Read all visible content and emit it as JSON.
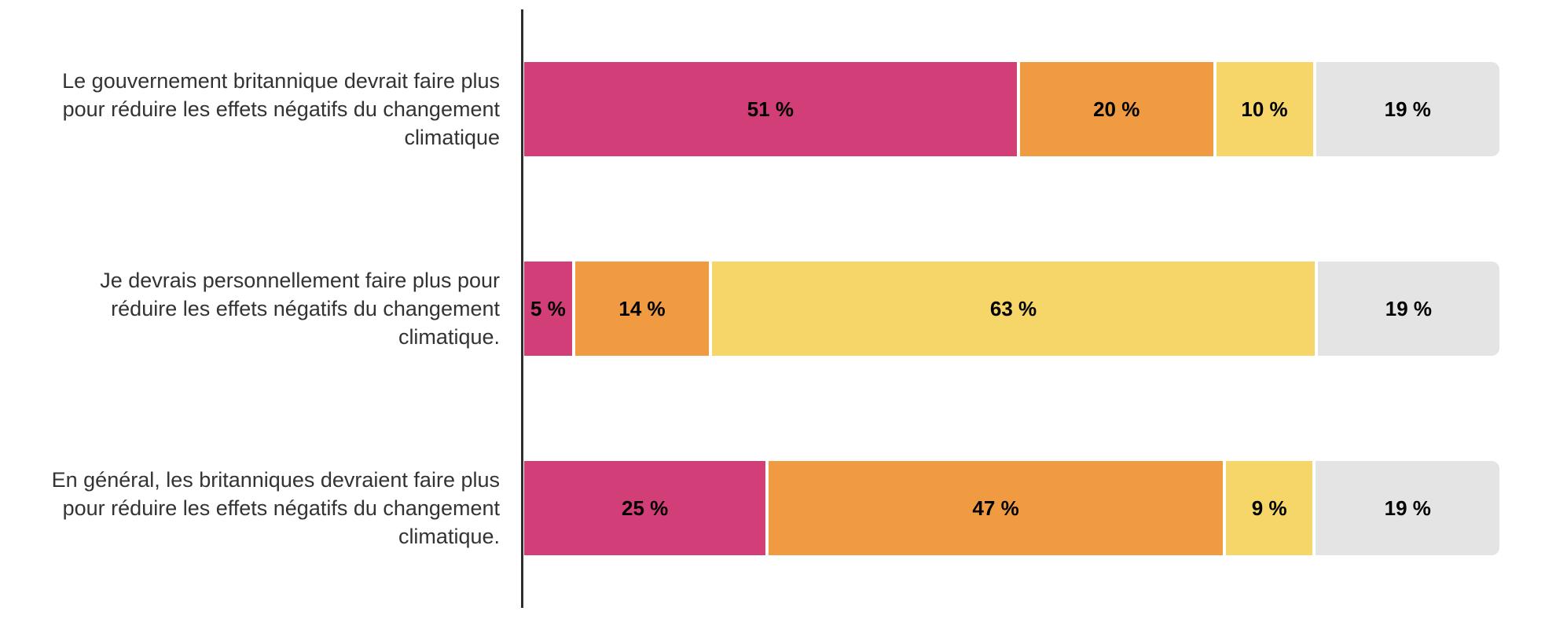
{
  "chart_data": {
    "type": "bar",
    "orientation": "horizontal",
    "stacked": true,
    "title": "",
    "xlabel": "",
    "ylabel": "",
    "unit": "%",
    "xlim": [
      0,
      100
    ],
    "grid": false,
    "legend_position": "none",
    "categories": [
      "Le gouvernement britannique devrait faire plus pour réduire les effets négatifs du changement climatique",
      "Je devrais personnellement faire plus pour réduire les effets négatifs du changement climatique.",
      "En général, les britanniques devraient faire plus pour réduire les effets négatifs du changement climatique."
    ],
    "category_lines": [
      [
        "Le gouvernement britannique devrait faire plus",
        "pour réduire les effets négatifs du changement",
        "climatique"
      ],
      [
        "Je devrais personnellement faire plus pour",
        "réduire les effets négatifs du changement",
        "climatique."
      ],
      [
        "En général, les britanniques devraient faire plus",
        "pour réduire les effets négatifs du changement",
        "climatique."
      ]
    ],
    "series": [
      {
        "name": "segment-pink",
        "color": "#d23e78",
        "values": [
          51,
          5,
          25
        ],
        "labels": [
          "51 %",
          "5 %",
          "25 %"
        ]
      },
      {
        "name": "segment-orange",
        "color": "#f09b42",
        "values": [
          20,
          14,
          47
        ],
        "labels": [
          "20 %",
          "14 %",
          "47 %"
        ]
      },
      {
        "name": "segment-yellow",
        "color": "#f6d569",
        "values": [
          10,
          63,
          9
        ],
        "labels": [
          "10 %",
          "63 %",
          "9 %"
        ]
      },
      {
        "name": "segment-gray",
        "color": "#e4e4e4",
        "values": [
          19,
          19,
          19
        ],
        "labels": [
          "19 %",
          "19 %",
          "19 %"
        ]
      }
    ]
  },
  "style": {
    "background": "#ffffff",
    "axis_line_color": "#2e2e2e",
    "category_label_color": "#333333",
    "value_label_color": "#000000"
  }
}
